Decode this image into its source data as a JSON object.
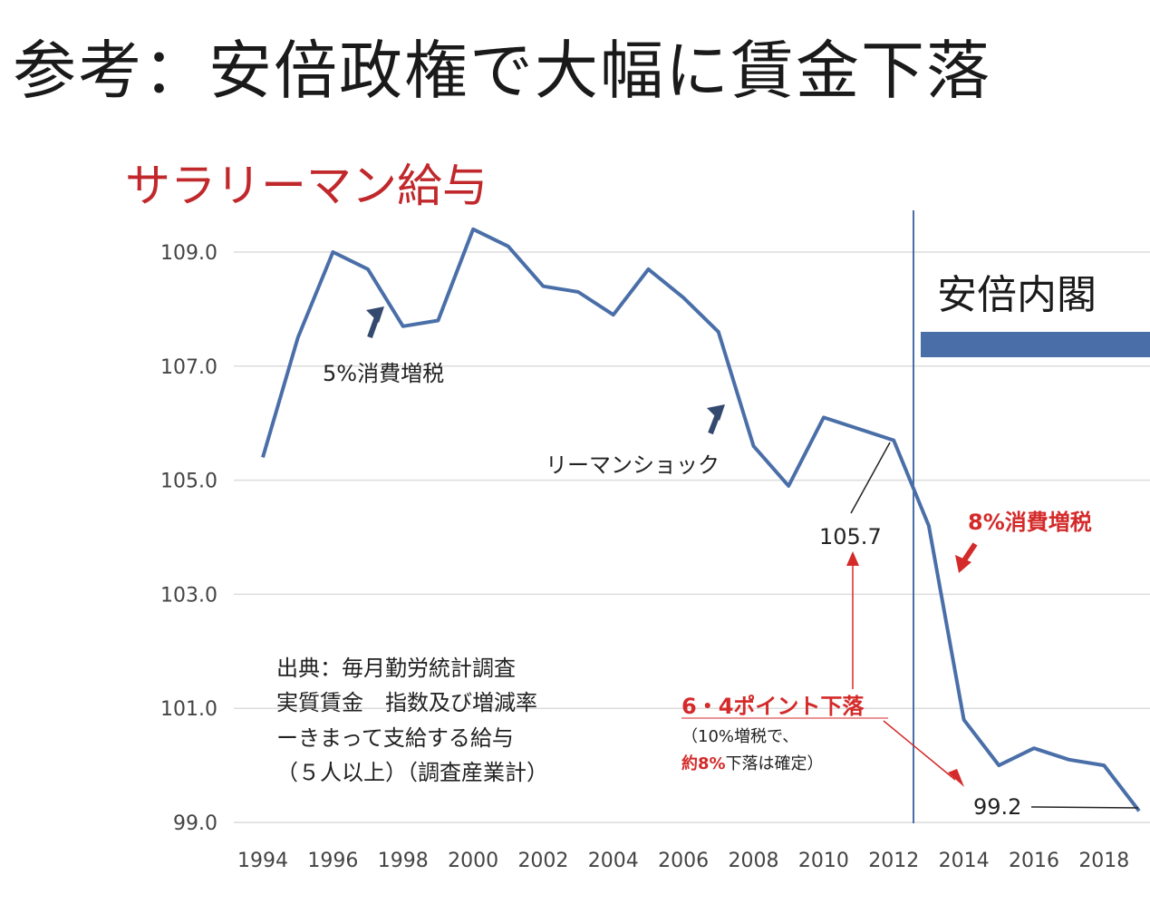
{
  "title": "参考：安倍政権で大幅に賃金下落",
  "chart_data": {
    "type": "line",
    "subtitle": "サラリーマン給与",
    "x": [
      1994,
      1995,
      1996,
      1997,
      1998,
      1999,
      2000,
      2001,
      2002,
      2003,
      2004,
      2005,
      2006,
      2007,
      2008,
      2009,
      2010,
      2011,
      2012,
      2013,
      2014,
      2015,
      2016,
      2017,
      2018,
      2019
    ],
    "values": [
      105.4,
      107.5,
      109.0,
      108.7,
      107.7,
      107.8,
      109.4,
      109.1,
      108.4,
      108.3,
      107.9,
      108.7,
      108.2,
      107.6,
      105.6,
      104.9,
      106.1,
      105.9,
      105.7,
      104.2,
      100.8,
      100.0,
      100.3,
      100.1,
      100.0,
      99.2
    ],
    "x_tick_labels": [
      "1994",
      "1996",
      "1998",
      "2000",
      "2002",
      "2004",
      "2006",
      "2008",
      "2010",
      "2012",
      "2014",
      "2016",
      "2018"
    ],
    "y_tick_labels": [
      "109.0",
      "107.0",
      "105.0",
      "103.0",
      "101.0",
      "99.0"
    ],
    "ylim": [
      99.0,
      109.0
    ],
    "xlabel": "",
    "ylabel": "",
    "grid": true,
    "line_color": "#4a6fa8",
    "annotations": {
      "tax5": "5%消費増税",
      "lehman": "リーマンショック",
      "value_2012": "105.7",
      "tax8": "8%消費増税",
      "drop": "6・4ポイント下落",
      "note_a": "（10%増税で、",
      "note_b_red": "約8%",
      "note_b": "下落は確定）",
      "value_2019": "99.2",
      "abe": "安倍内閣"
    },
    "source_lines": [
      "出典：毎月勤労統計調査",
      "実質賃金　指数及び増減率",
      "ーきまって支給する給与",
      "（５人以上）（調査産業計）"
    ],
    "colors": {
      "line": "#4a6fa8",
      "bar": "#4a6fa8",
      "red": "#d42a2a",
      "arrow_blue": "#34496e"
    }
  }
}
